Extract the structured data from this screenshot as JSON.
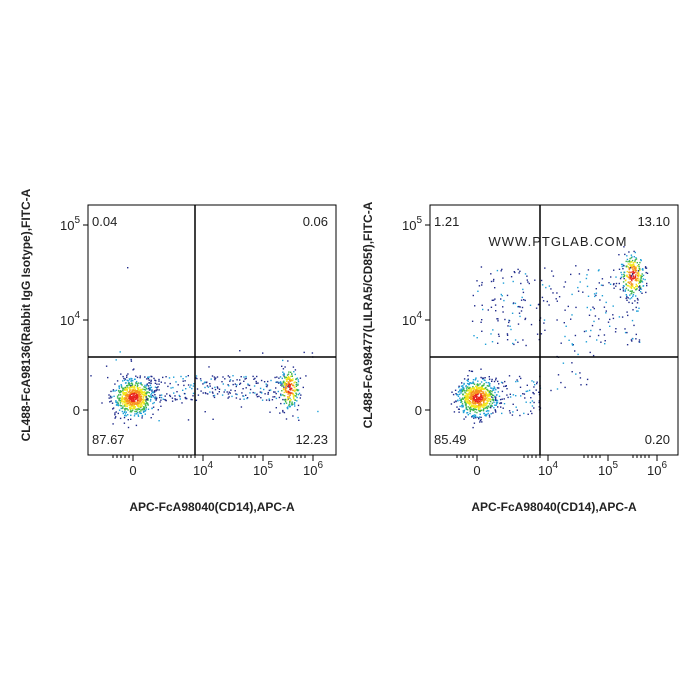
{
  "panels": [
    {
      "y_label": "CL488-FcA98136(Rabbit IgG Isotype),FITC-A",
      "x_label": "APC-FcA98040(CD14),APC-A",
      "yticks": [
        {
          "label": "0"
        },
        {
          "base": "10",
          "exp": "4"
        },
        {
          "base": "10",
          "exp": "5"
        }
      ],
      "xticks": [
        {
          "label": "0"
        },
        {
          "base": "10",
          "exp": "4"
        },
        {
          "base": "10",
          "exp": "5"
        },
        {
          "base": "10",
          "exp": "6"
        }
      ],
      "quadrants": {
        "upper_left": "0.04",
        "upper_right": "0.06",
        "lower_left": "87.67",
        "lower_right": "12.23"
      }
    },
    {
      "y_label": "CL488-FcA98477(LILRA5/CD85f),FITC-A",
      "x_label": "APC-FcA98040(CD14),APC-A",
      "watermark": "WWW.PTGLAB.COM",
      "yticks": [
        {
          "label": "0"
        },
        {
          "base": "10",
          "exp": "4"
        },
        {
          "base": "10",
          "exp": "5"
        }
      ],
      "xticks": [
        {
          "label": "0"
        },
        {
          "base": "10",
          "exp": "4"
        },
        {
          "base": "10",
          "exp": "5"
        },
        {
          "base": "10",
          "exp": "6"
        }
      ],
      "quadrants": {
        "upper_left": "1.21",
        "upper_right": "13.10",
        "lower_left": "85.49",
        "lower_right": "0.20"
      }
    }
  ]
}
